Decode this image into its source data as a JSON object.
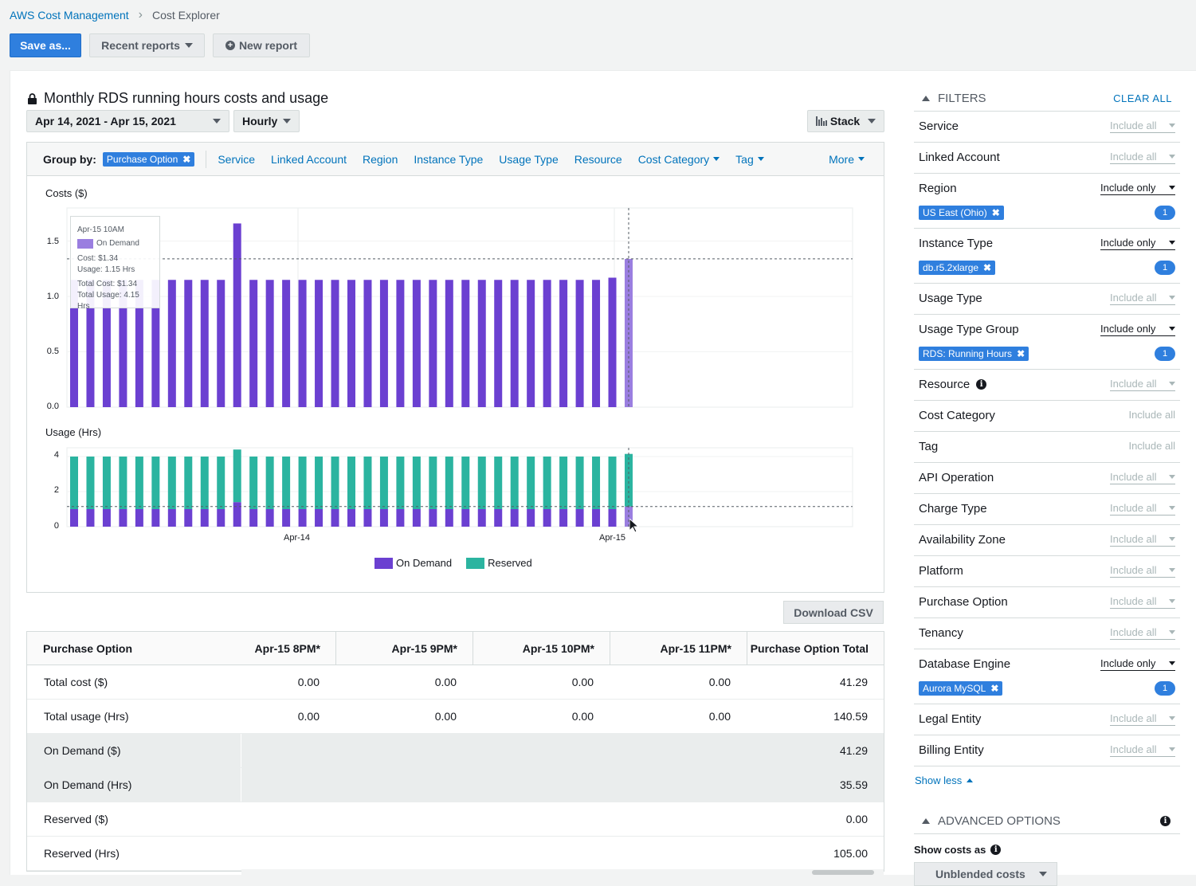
{
  "breadcrumb": {
    "root": "AWS Cost Management",
    "current": "Cost Explorer"
  },
  "toolbar": {
    "save_label": "Save as...",
    "recent_label": "Recent reports",
    "new_label": "New report"
  },
  "report": {
    "title": "Monthly RDS running hours costs and usage",
    "date_range": "Apr 14, 2021 - Apr 15, 2021",
    "granularity": "Hourly",
    "chart_style": "Stack"
  },
  "groupby": {
    "label": "Group by:",
    "chip": "Purchase Option",
    "options": [
      "Service",
      "Linked Account",
      "Region",
      "Instance Type",
      "Usage Type",
      "Resource"
    ],
    "dropdowns": [
      "Cost Category",
      "Tag"
    ],
    "more": "More"
  },
  "chart_data": [
    {
      "type": "bar",
      "title": "Costs ($)",
      "ylim": [
        0,
        1.8
      ],
      "yticks": [
        "0.0",
        "0.5",
        "1.0",
        "1.5"
      ],
      "xticks": [
        "Apr-14",
        "Apr-15"
      ],
      "grid": true,
      "series": [
        {
          "name": "On Demand",
          "values": [
            1.15,
            1.15,
            1.15,
            1.15,
            1.15,
            1.15,
            1.15,
            1.15,
            1.15,
            1.15,
            1.66,
            1.15,
            1.15,
            1.15,
            1.15,
            1.15,
            1.15,
            1.15,
            1.15,
            1.15,
            1.15,
            1.15,
            1.15,
            1.15,
            1.15,
            1.15,
            1.15,
            1.15,
            1.15,
            1.15,
            1.15,
            1.15,
            1.15,
            1.17,
            1.34
          ]
        }
      ]
    },
    {
      "type": "bar",
      "title": "Usage (Hrs)",
      "ylim": [
        0,
        4.5
      ],
      "yticks": [
        "0",
        "2",
        "4"
      ],
      "xticks": [
        "Apr-14",
        "Apr-15"
      ],
      "grid": true,
      "stacked": true,
      "series": [
        {
          "name": "On Demand",
          "values": [
            1,
            1,
            1,
            1,
            1,
            1,
            1,
            1,
            1,
            1,
            1.4,
            1,
            1,
            1,
            1,
            1,
            1,
            1,
            1,
            1,
            1,
            1,
            1,
            1,
            1,
            1,
            1,
            1,
            1,
            1,
            1,
            1,
            1,
            1,
            1.15
          ]
        },
        {
          "name": "Reserved",
          "values": [
            3,
            3,
            3,
            3,
            3,
            3,
            3,
            3,
            3,
            3,
            3,
            3,
            3,
            3,
            3,
            3,
            3,
            3,
            3,
            3,
            3,
            3,
            3,
            3,
            3,
            3,
            3,
            3,
            3,
            3,
            3,
            3,
            3,
            3,
            3
          ]
        }
      ]
    }
  ],
  "legend": [
    {
      "name": "On Demand",
      "color": "#6b40d1"
    },
    {
      "name": "Reserved",
      "color": "#2bb4a0"
    }
  ],
  "colors": {
    "on_demand": "#6b40d1",
    "reserved": "#2bb4a0",
    "highlight": "#9a7ee0",
    "accent": "#2f7fde",
    "link": "#0073bb"
  },
  "tooltip": {
    "time": "Apr-15 10AM",
    "series": "On Demand",
    "cost": "Cost: $1.34",
    "usage": "Usage: 1.15 Hrs",
    "total_cost": "Total Cost: $1.34",
    "total_usage": "Total Usage: 4.15 Hrs"
  },
  "download_label": "Download CSV",
  "table": {
    "headers": [
      "Purchase Option",
      "Apr-15 8PM*",
      "Apr-15 9PM*",
      "Apr-15 10PM*",
      "Apr-15 11PM*",
      "Purchase Option Total"
    ],
    "rows": [
      {
        "label": "Total cost ($)",
        "cells": [
          "0.00",
          "0.00",
          "0.00",
          "0.00"
        ],
        "total": "41.29"
      },
      {
        "label": "Total usage (Hrs)",
        "cells": [
          "0.00",
          "0.00",
          "0.00",
          "0.00"
        ],
        "total": "140.59"
      },
      {
        "label": "On Demand ($)",
        "total": "41.29"
      },
      {
        "label": "On Demand (Hrs)",
        "total": "35.59"
      },
      {
        "label": "Reserved ($)",
        "total": "0.00"
      },
      {
        "label": "Reserved (Hrs)",
        "total": "105.00"
      }
    ]
  },
  "filters": {
    "title": "FILTERS",
    "clear_all": "CLEAR ALL",
    "items": [
      {
        "name": "Service",
        "mode": "Include all"
      },
      {
        "name": "Linked Account",
        "mode": "Include all"
      },
      {
        "name": "Region",
        "mode": "Include only",
        "chip": "US East (Ohio)",
        "count": "1"
      },
      {
        "name": "Instance Type",
        "mode": "Include only",
        "chip": "db.r5.2xlarge",
        "count": "1"
      },
      {
        "name": "Usage Type",
        "mode": "Include all"
      },
      {
        "name": "Usage Type Group",
        "mode": "Include only",
        "chip": "RDS: Running Hours",
        "count": "1"
      },
      {
        "name": "Resource",
        "mode": "Include all"
      },
      {
        "name": "Cost Category",
        "mode": "Include all"
      },
      {
        "name": "Tag",
        "mode": "Include all"
      },
      {
        "name": "API Operation",
        "mode": "Include all"
      },
      {
        "name": "Charge Type",
        "mode": "Include all"
      },
      {
        "name": "Availability Zone",
        "mode": "Include all"
      },
      {
        "name": "Platform",
        "mode": "Include all"
      },
      {
        "name": "Purchase Option",
        "mode": "Include all"
      },
      {
        "name": "Tenancy",
        "mode": "Include all"
      },
      {
        "name": "Database Engine",
        "mode": "Include only",
        "chip": "Aurora MySQL",
        "count": "1"
      },
      {
        "name": "Legal Entity",
        "mode": "Include all"
      },
      {
        "name": "Billing Entity",
        "mode": "Include all"
      }
    ],
    "show_less": "Show less"
  },
  "advanced": {
    "title": "ADVANCED OPTIONS",
    "show_costs_as": "Show costs as",
    "cost_type": "Unblended costs"
  }
}
